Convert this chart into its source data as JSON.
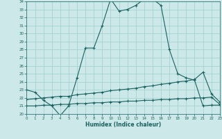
{
  "xlabel": "Humidex (Indice chaleur)",
  "background_color": "#cce8e8",
  "grid_color": "#9dcfcf",
  "line_color": "#1a6060",
  "xlim": [
    0,
    23
  ],
  "ylim": [
    20,
    34
  ],
  "xticks": [
    0,
    1,
    2,
    3,
    4,
    5,
    6,
    7,
    8,
    9,
    10,
    11,
    12,
    13,
    14,
    15,
    16,
    17,
    18,
    19,
    20,
    21,
    22,
    23
  ],
  "yticks": [
    20,
    21,
    22,
    23,
    24,
    25,
    26,
    27,
    28,
    29,
    30,
    31,
    32,
    33,
    34
  ],
  "line1_x": [
    0,
    1,
    2,
    3,
    4,
    5,
    6,
    7,
    8,
    9,
    10,
    11,
    12,
    13,
    14,
    15,
    16,
    17,
    18,
    19,
    20,
    21,
    22,
    23
  ],
  "line1_y": [
    23.0,
    22.7,
    21.7,
    21.0,
    19.8,
    21.0,
    24.5,
    28.2,
    28.2,
    31.0,
    34.3,
    32.8,
    33.0,
    33.5,
    34.3,
    34.3,
    33.5,
    28.0,
    25.0,
    24.5,
    24.2,
    21.0,
    21.1,
    21.1
  ],
  "line2_x": [
    0,
    1,
    2,
    3,
    4,
    5,
    6,
    7,
    8,
    9,
    10,
    11,
    12,
    13,
    14,
    15,
    16,
    17,
    18,
    19,
    20,
    21,
    22,
    23
  ],
  "line2_y": [
    21.8,
    21.9,
    22.0,
    22.1,
    22.2,
    22.2,
    22.4,
    22.5,
    22.6,
    22.7,
    22.9,
    23.0,
    23.1,
    23.2,
    23.4,
    23.5,
    23.7,
    23.8,
    24.0,
    24.1,
    24.3,
    25.2,
    22.5,
    21.5
  ],
  "line3_x": [
    0,
    1,
    2,
    3,
    4,
    5,
    6,
    7,
    8,
    9,
    10,
    11,
    12,
    13,
    14,
    15,
    16,
    17,
    18,
    19,
    20,
    21,
    22,
    23
  ],
  "line3_y": [
    21.0,
    21.0,
    21.1,
    21.1,
    21.2,
    21.2,
    21.3,
    21.3,
    21.4,
    21.4,
    21.5,
    21.5,
    21.6,
    21.6,
    21.7,
    21.7,
    21.8,
    21.8,
    21.9,
    21.9,
    22.0,
    22.0,
    22.1,
    21.2
  ]
}
